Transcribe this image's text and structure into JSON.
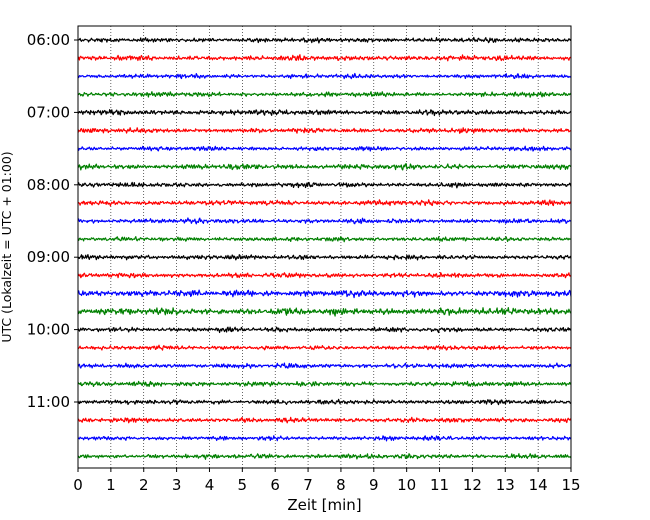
{
  "chart_data": {
    "type": "line",
    "title": "",
    "xlabel": "Zeit  [min]",
    "ylabel": "UTC (Lokalzeit = UTC + 01:00)",
    "xlim": [
      0,
      15
    ],
    "x_ticks": [
      "0",
      "1",
      "2",
      "3",
      "4",
      "5",
      "6",
      "7",
      "8",
      "9",
      "10",
      "11",
      "12",
      "13",
      "14",
      "15"
    ],
    "y_ticks": [
      "06:00",
      "07:00",
      "08:00",
      "09:00",
      "10:00",
      "11:00"
    ],
    "grid": "vertical dotted at each minute",
    "trace_minutes": 15,
    "trace_start": "06:00",
    "trace_count": 24,
    "trace_colors": [
      "#000000",
      "#ff0000",
      "#0000ff",
      "#008000"
    ],
    "traces": [
      {
        "start": "06:00",
        "color": "#000000",
        "amplitude": 1.0
      },
      {
        "start": "06:15",
        "color": "#ff0000",
        "amplitude": 1.1
      },
      {
        "start": "06:30",
        "color": "#0000ff",
        "amplitude": 0.9
      },
      {
        "start": "06:45",
        "color": "#008000",
        "amplitude": 1.0
      },
      {
        "start": "07:00",
        "color": "#000000",
        "amplitude": 1.1
      },
      {
        "start": "07:15",
        "color": "#ff0000",
        "amplitude": 1.0
      },
      {
        "start": "07:30",
        "color": "#0000ff",
        "amplitude": 0.9
      },
      {
        "start": "07:45",
        "color": "#008000",
        "amplitude": 1.1
      },
      {
        "start": "08:00",
        "color": "#000000",
        "amplitude": 1.0
      },
      {
        "start": "08:15",
        "color": "#ff0000",
        "amplitude": 1.1
      },
      {
        "start": "08:30",
        "color": "#0000ff",
        "amplitude": 1.0
      },
      {
        "start": "08:45",
        "color": "#008000",
        "amplitude": 0.9
      },
      {
        "start": "09:00",
        "color": "#000000",
        "amplitude": 1.0
      },
      {
        "start": "09:15",
        "color": "#ff0000",
        "amplitude": 1.0
      },
      {
        "start": "09:30",
        "color": "#0000ff",
        "amplitude": 1.4
      },
      {
        "start": "09:45",
        "color": "#008000",
        "amplitude": 1.5
      },
      {
        "start": "10:00",
        "color": "#000000",
        "amplitude": 1.0
      },
      {
        "start": "10:15",
        "color": "#ff0000",
        "amplitude": 0.9
      },
      {
        "start": "10:30",
        "color": "#0000ff",
        "amplitude": 1.0
      },
      {
        "start": "10:45",
        "color": "#008000",
        "amplitude": 1.0
      },
      {
        "start": "11:00",
        "color": "#000000",
        "amplitude": 1.0
      },
      {
        "start": "11:15",
        "color": "#ff0000",
        "amplitude": 1.0
      },
      {
        "start": "11:30",
        "color": "#0000ff",
        "amplitude": 0.9
      },
      {
        "start": "11:45",
        "color": "#008000",
        "amplitude": 1.0
      }
    ]
  }
}
